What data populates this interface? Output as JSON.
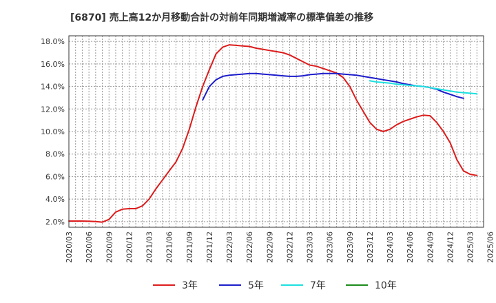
{
  "chart_data": {
    "type": "line",
    "title": "[6870]  売上高12か月移動合計の対前年同期増減率の標準偏差の推移",
    "xlabel": "",
    "ylabel": "",
    "ylim": [
      1.5,
      18.5
    ],
    "y_ticks": [
      2.0,
      4.0,
      6.0,
      8.0,
      10.0,
      12.0,
      14.0,
      16.0,
      18.0
    ],
    "y_tick_labels": [
      "2.0%",
      "4.0%",
      "6.0%",
      "8.0%",
      "10.0%",
      "12.0%",
      "14.0%",
      "16.0%",
      "18.0%"
    ],
    "x_tick_labels": [
      "2020/03",
      "2020/06",
      "2020/09",
      "2020/12",
      "2021/03",
      "2021/06",
      "2021/09",
      "2021/12",
      "2022/03",
      "2022/06",
      "2022/09",
      "2022/12",
      "2023/03",
      "2023/06",
      "2023/09",
      "2023/12",
      "2024/03",
      "2024/06",
      "2024/09",
      "2024/12",
      "2025/03",
      "2025/06"
    ],
    "grid": true,
    "legend_position": "bottom",
    "series": [
      {
        "name": "3年",
        "color": "#dd1c1c",
        "start_index": 0,
        "values": [
          2.05,
          2.05,
          2.05,
          2.03,
          2.0,
          1.95,
          2.2,
          2.85,
          3.1,
          3.15,
          3.15,
          3.4,
          4.0,
          4.9,
          5.7,
          6.5,
          7.3,
          8.5,
          10.2,
          12.2,
          14.0,
          15.5,
          16.9,
          17.5,
          17.7,
          17.65,
          17.6,
          17.55,
          17.4,
          17.3,
          17.2,
          17.1,
          17.0,
          16.8,
          16.5,
          16.2,
          15.9,
          15.8,
          15.6,
          15.4,
          15.2,
          14.8,
          14.0,
          12.8,
          11.8,
          10.8,
          10.2,
          10.0,
          10.2,
          10.6,
          10.9,
          11.1,
          11.3,
          11.45,
          11.4,
          10.8,
          10.0,
          9.0,
          7.5,
          6.5,
          6.2,
          6.1
        ]
      },
      {
        "name": "5年",
        "color": "#1c1ccc",
        "start_index": 20,
        "values": [
          12.8,
          14.0,
          14.6,
          14.9,
          15.0,
          15.05,
          15.1,
          15.15,
          15.15,
          15.1,
          15.05,
          15.0,
          14.95,
          14.9,
          14.9,
          14.95,
          15.05,
          15.1,
          15.15,
          15.15,
          15.15,
          15.1,
          15.05,
          15.0,
          14.9,
          14.8,
          14.7,
          14.6,
          14.5,
          14.4,
          14.25,
          14.15,
          14.05,
          14.0,
          13.9,
          13.75,
          13.5,
          13.3,
          13.1,
          12.95
        ]
      },
      {
        "name": "7年",
        "color": "#1ce0e0",
        "start_index": 45,
        "values": [
          14.5,
          14.4,
          14.35,
          14.3,
          14.2,
          14.15,
          14.1,
          14.05,
          14.0,
          13.9,
          13.8,
          13.7,
          13.6,
          13.5,
          13.45,
          13.4,
          13.35
        ]
      },
      {
        "name": "10年",
        "color": "#1c8c1c",
        "start_index": 0,
        "values": []
      }
    ]
  }
}
